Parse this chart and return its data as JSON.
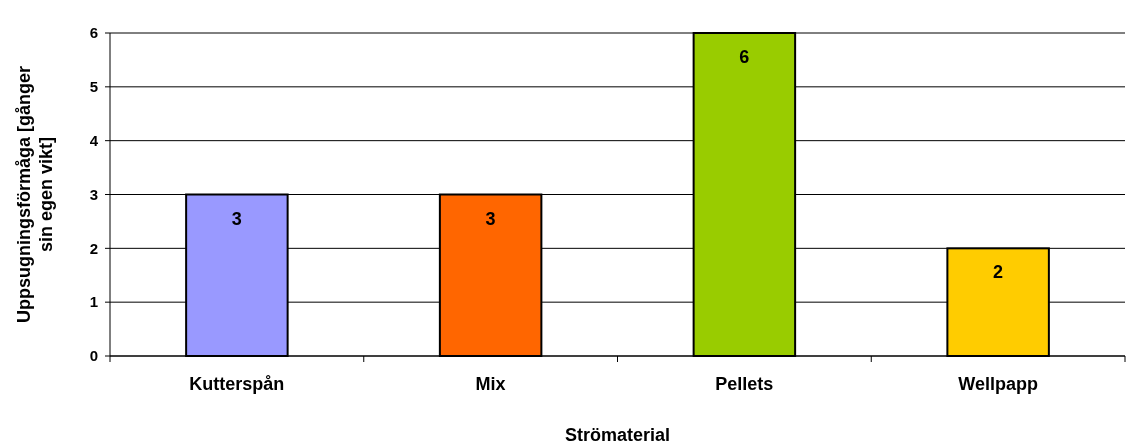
{
  "chart_data": {
    "type": "bar",
    "xlabel": "Strömaterial",
    "ylabel": "Uppsugningsförmåga [gånger sin egen vikt]",
    "categories": [
      "Kutterspån",
      "Mix",
      "Pellets",
      "Wellpapp"
    ],
    "values": [
      3,
      3,
      6,
      2
    ],
    "colors": [
      "#9999ff",
      "#ff6600",
      "#99cc00",
      "#ffcc00"
    ],
    "ylim": [
      0,
      6
    ],
    "yticks": [
      0,
      1,
      2,
      3,
      4,
      5,
      6
    ],
    "grid": "y",
    "data_labels": true
  }
}
